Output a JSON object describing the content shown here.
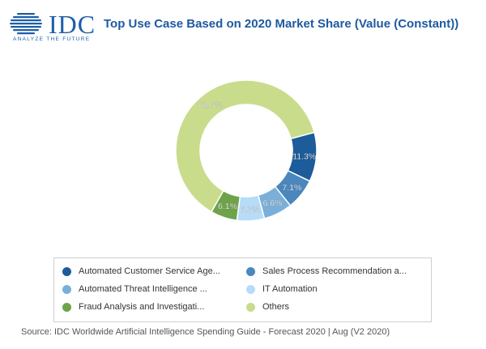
{
  "header": {
    "logo_text": "IDC",
    "logo_tagline": "ANALYZE THE FUTURE",
    "title": "Top Use Case Based on 2020 Market Share (Value (Constant))"
  },
  "footer": {
    "source": "Source: IDC Worldwide Artificial Intelligence Spending Guide - Forecast 2020 | Aug (V2 2020)"
  },
  "colors": {
    "brand": "#1d5fa8",
    "title": "#1e5aa0"
  },
  "chart_data": {
    "type": "pie",
    "variant": "donut",
    "title": "Top Use Case Based on 2020 Market Share (Value (Constant))",
    "unit": "%",
    "series": [
      {
        "name": "Automated Customer Service Age...",
        "value": 11.3,
        "label": "11.3%",
        "color": "#1c5c9a"
      },
      {
        "name": "Sales Process Recommendation a...",
        "value": 7.1,
        "label": "7.1%",
        "color": "#4a87bd"
      },
      {
        "name": "Automated Threat Intelligence ...",
        "value": 6.6,
        "label": "6.6%",
        "color": "#7bafd9"
      },
      {
        "name": "IT Automation",
        "value": 6.3,
        "label": "6.3%",
        "color": "#b6dcf7"
      },
      {
        "name": "Fraud Analysis and Investigati...",
        "value": 6.1,
        "label": "6.1%",
        "color": "#6ea34a"
      },
      {
        "name": "Others",
        "value": 62.6,
        "label": "62.6%",
        "color": "#c9dc8c"
      }
    ],
    "legend": {
      "position": "bottom",
      "order": [
        0,
        1,
        2,
        3,
        4,
        5
      ]
    }
  }
}
